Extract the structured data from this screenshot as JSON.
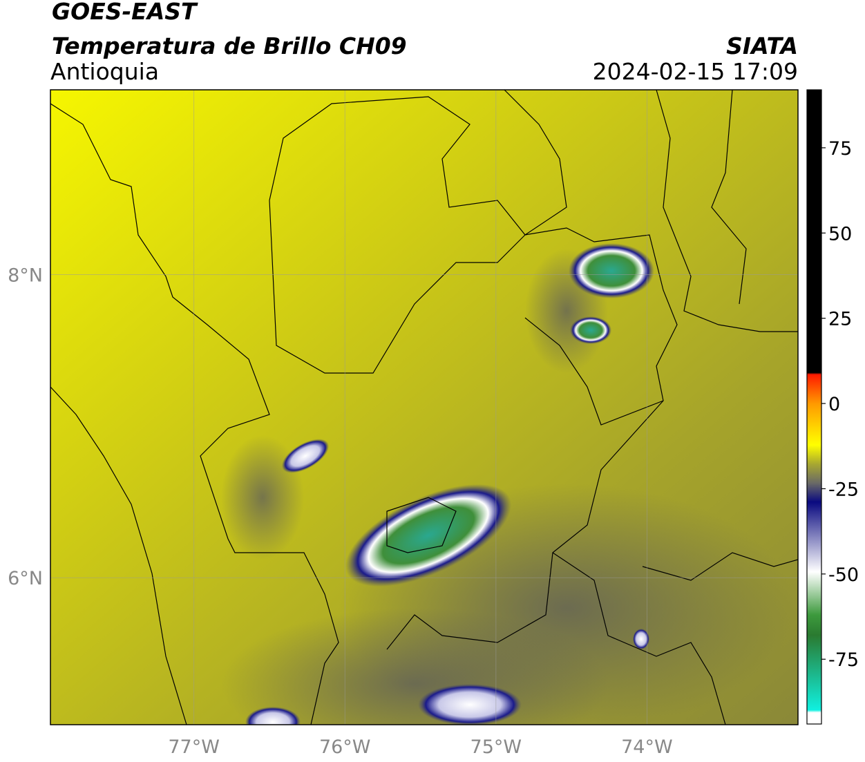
{
  "header": {
    "title": "GOES-EAST",
    "subtitle": "Temperatura de Brillo CH09",
    "region": "Antioquia",
    "source": "SIATA",
    "datetime": "2024-02-15 17:09"
  },
  "map": {
    "xlim": [
      -77.95,
      -73.0
    ],
    "ylim": [
      5.03,
      9.22
    ],
    "xticks": [
      {
        "value": -77,
        "label": "77°W"
      },
      {
        "value": -76,
        "label": "76°W"
      },
      {
        "value": -75,
        "label": "75°W"
      },
      {
        "value": -74,
        "label": "74°W"
      }
    ],
    "yticks": [
      {
        "value": 8,
        "label": "8°N"
      },
      {
        "value": 6,
        "label": "6°N"
      }
    ]
  },
  "colorbar": {
    "lim": [
      -94,
      92
    ],
    "ticks": [
      75,
      50,
      25,
      0,
      -25,
      -50,
      -75
    ]
  }
}
